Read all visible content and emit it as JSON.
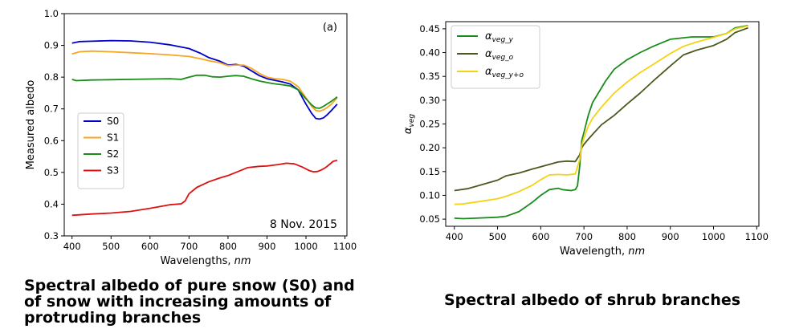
{
  "chart_data": [
    {
      "type": "line",
      "title": "",
      "panel_label": "(a)",
      "annotation": "8 Nov. 2015",
      "xlabel": "Wavelengths, nm",
      "ylabel": "Measured albedo",
      "xlim": [
        380,
        1105
      ],
      "ylim": [
        0.3,
        1.0
      ],
      "xticks": [
        400,
        500,
        600,
        700,
        800,
        900,
        1000,
        1100
      ],
      "yticks": [
        0.3,
        0.4,
        0.5,
        0.6,
        0.7,
        0.8,
        0.9,
        1.0
      ],
      "grid": false,
      "legend_position": "center-left",
      "series": [
        {
          "name": "S0",
          "color": "#0000cc",
          "x": [
            400,
            420,
            450,
            500,
            550,
            600,
            650,
            700,
            730,
            750,
            780,
            800,
            820,
            840,
            860,
            880,
            900,
            920,
            940,
            960,
            980,
            1000,
            1015,
            1025,
            1035,
            1045,
            1055,
            1065,
            1075,
            1080
          ],
          "y": [
            0.907,
            0.912,
            0.913,
            0.915,
            0.914,
            0.91,
            0.902,
            0.89,
            0.875,
            0.862,
            0.85,
            0.838,
            0.84,
            0.835,
            0.82,
            0.805,
            0.795,
            0.79,
            0.785,
            0.778,
            0.76,
            0.715,
            0.685,
            0.67,
            0.668,
            0.672,
            0.682,
            0.695,
            0.708,
            0.715
          ]
        },
        {
          "name": "S1",
          "color": "#f5a623",
          "x": [
            400,
            420,
            450,
            500,
            550,
            600,
            650,
            700,
            730,
            750,
            780,
            800,
            820,
            840,
            860,
            880,
            900,
            920,
            940,
            960,
            980,
            1000,
            1015,
            1025,
            1035,
            1045,
            1055,
            1065,
            1075,
            1080
          ],
          "y": [
            0.873,
            0.88,
            0.882,
            0.88,
            0.877,
            0.874,
            0.87,
            0.865,
            0.858,
            0.852,
            0.845,
            0.836,
            0.838,
            0.838,
            0.828,
            0.812,
            0.8,
            0.795,
            0.793,
            0.787,
            0.77,
            0.735,
            0.707,
            0.695,
            0.693,
            0.697,
            0.705,
            0.715,
            0.728,
            0.735
          ]
        },
        {
          "name": "S2",
          "color": "#1a8c1a",
          "x": [
            400,
            410,
            450,
            500,
            550,
            600,
            650,
            680,
            700,
            720,
            740,
            760,
            780,
            800,
            820,
            840,
            860,
            880,
            900,
            920,
            940,
            960,
            980,
            1000,
            1015,
            1025,
            1035,
            1045,
            1055,
            1065,
            1075,
            1080
          ],
          "y": [
            0.793,
            0.789,
            0.791,
            0.792,
            0.793,
            0.794,
            0.795,
            0.793,
            0.8,
            0.806,
            0.806,
            0.801,
            0.8,
            0.803,
            0.805,
            0.803,
            0.795,
            0.788,
            0.783,
            0.779,
            0.776,
            0.772,
            0.76,
            0.732,
            0.712,
            0.703,
            0.702,
            0.708,
            0.716,
            0.724,
            0.733,
            0.738
          ]
        },
        {
          "name": "S3",
          "color": "#dd1111",
          "x": [
            400,
            450,
            500,
            550,
            600,
            650,
            680,
            690,
            700,
            720,
            750,
            780,
            800,
            820,
            850,
            880,
            900,
            930,
            950,
            970,
            990,
            1010,
            1020,
            1030,
            1040,
            1050,
            1060,
            1070,
            1080
          ],
          "y": [
            0.365,
            0.369,
            0.372,
            0.377,
            0.387,
            0.398,
            0.401,
            0.41,
            0.433,
            0.453,
            0.47,
            0.483,
            0.49,
            0.5,
            0.515,
            0.519,
            0.52,
            0.525,
            0.529,
            0.527,
            0.517,
            0.505,
            0.502,
            0.503,
            0.508,
            0.515,
            0.525,
            0.535,
            0.538
          ]
        }
      ],
      "caption": [
        "Spectral albedo of pure snow (S0) and",
        "of snow with increasing amounts of",
        "protruding branches"
      ]
    },
    {
      "type": "line",
      "title": "",
      "xlabel": "Wavelength, nm",
      "ylabel": "αveg",
      "xlim": [
        380,
        1105
      ],
      "ylim": [
        0.035,
        0.465
      ],
      "xticks": [
        400,
        500,
        600,
        700,
        800,
        900,
        1000,
        1100
      ],
      "yticks": [
        0.05,
        0.1,
        0.15,
        0.2,
        0.25,
        0.3,
        0.35,
        0.4,
        0.45
      ],
      "grid": false,
      "legend_position": "top-left",
      "series": [
        {
          "name": "αveg_y",
          "label_main": "α",
          "label_sub": "veg_y",
          "color": "#1a8c1a",
          "x": [
            400,
            420,
            450,
            500,
            520,
            550,
            580,
            600,
            620,
            640,
            650,
            670,
            680,
            685,
            690,
            695,
            700,
            710,
            720,
            730,
            750,
            770,
            800,
            830,
            860,
            900,
            950,
            1000,
            1030,
            1050,
            1080
          ],
          "y": [
            0.052,
            0.051,
            0.052,
            0.054,
            0.056,
            0.066,
            0.085,
            0.1,
            0.112,
            0.115,
            0.112,
            0.11,
            0.112,
            0.12,
            0.16,
            0.215,
            0.232,
            0.268,
            0.295,
            0.31,
            0.34,
            0.365,
            0.385,
            0.4,
            0.413,
            0.428,
            0.433,
            0.433,
            0.44,
            0.452,
            0.457
          ]
        },
        {
          "name": "αveg_o",
          "label_main": "α",
          "label_sub": "veg_o",
          "color": "#4a5a1f",
          "x": [
            400,
            430,
            450,
            500,
            520,
            550,
            580,
            600,
            620,
            640,
            660,
            680,
            690,
            695,
            700,
            710,
            720,
            740,
            770,
            800,
            830,
            860,
            900,
            930,
            960,
            1000,
            1030,
            1050,
            1080
          ],
          "y": [
            0.11,
            0.114,
            0.119,
            0.132,
            0.141,
            0.147,
            0.155,
            0.16,
            0.165,
            0.17,
            0.172,
            0.171,
            0.185,
            0.2,
            0.207,
            0.218,
            0.228,
            0.248,
            0.268,
            0.292,
            0.315,
            0.34,
            0.372,
            0.395,
            0.405,
            0.415,
            0.428,
            0.442,
            0.452
          ]
        },
        {
          "name": "αveg_y+o",
          "label_main": "α",
          "label_sub": "veg_y+o",
          "color": "#f5d313",
          "x": [
            400,
            420,
            450,
            500,
            520,
            550,
            580,
            600,
            620,
            640,
            660,
            680,
            690,
            695,
            700,
            710,
            720,
            740,
            770,
            800,
            830,
            860,
            900,
            930,
            960,
            1000,
            1030,
            1050,
            1080
          ],
          "y": [
            0.081,
            0.082,
            0.086,
            0.093,
            0.098,
            0.108,
            0.121,
            0.133,
            0.143,
            0.144,
            0.143,
            0.145,
            0.175,
            0.205,
            0.22,
            0.245,
            0.262,
            0.285,
            0.315,
            0.338,
            0.358,
            0.375,
            0.398,
            0.413,
            0.422,
            0.432,
            0.44,
            0.45,
            0.456
          ]
        }
      ],
      "caption": [
        "Spectral albedo of shrub branches"
      ]
    }
  ]
}
